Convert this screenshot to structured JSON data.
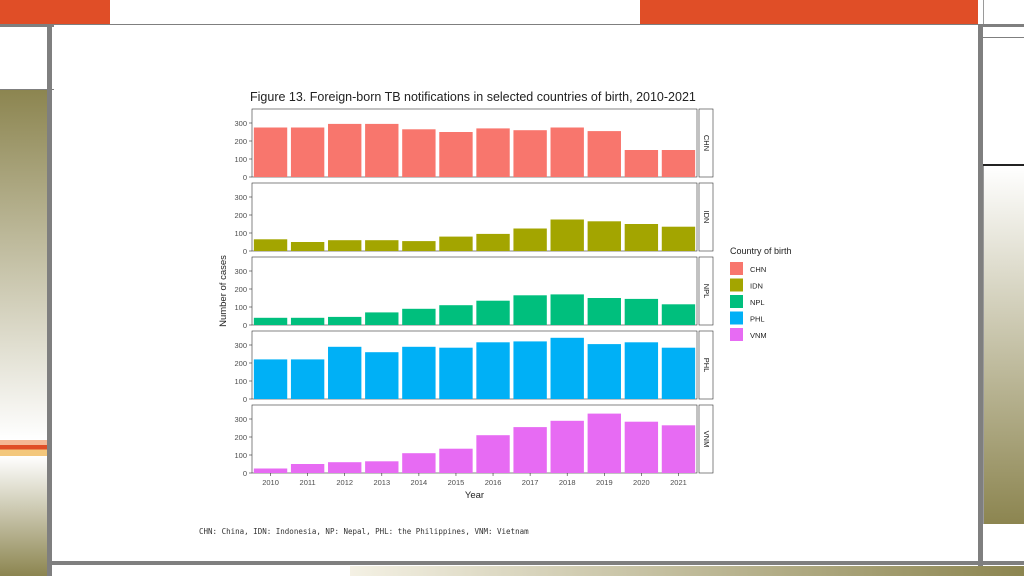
{
  "theme": {
    "accent_orange": "#e04e27",
    "frame_gray": "#7f7f7f",
    "olive_gradient_top": "#8c8550",
    "olive_gradient_bottom": "#ffffff",
    "khaki": "#c9c7aa"
  },
  "chart_data": {
    "type": "bar",
    "title": "Figure 13. Foreign-born TB notifications in selected countries of birth, 2010-2021",
    "xlabel": "Year",
    "ylabel": "Number of cases",
    "ylim": [
      0,
      350
    ],
    "yticks": [
      0,
      100,
      200,
      300
    ],
    "grid": false,
    "legend_position": "right",
    "legend_title": "Country of birth",
    "categories": [
      "2010",
      "2011",
      "2012",
      "2013",
      "2014",
      "2015",
      "2016",
      "2017",
      "2018",
      "2019",
      "2020",
      "2021"
    ],
    "series": [
      {
        "name": "CHN",
        "color": "#f8766d",
        "values": [
          275,
          275,
          295,
          295,
          265,
          250,
          270,
          260,
          275,
          255,
          150,
          150
        ]
      },
      {
        "name": "IDN",
        "color": "#a3a500",
        "values": [
          65,
          50,
          60,
          60,
          55,
          80,
          95,
          125,
          175,
          165,
          150,
          135
        ]
      },
      {
        "name": "NPL",
        "color": "#00bf7d",
        "values": [
          40,
          40,
          45,
          70,
          90,
          110,
          135,
          165,
          170,
          150,
          145,
          115
        ]
      },
      {
        "name": "PHL",
        "color": "#00b0f6",
        "values": [
          220,
          220,
          290,
          260,
          290,
          285,
          315,
          320,
          340,
          305,
          315,
          285
        ]
      },
      {
        "name": "VNM",
        "color": "#e76bf3",
        "values": [
          25,
          50,
          60,
          65,
          110,
          135,
          210,
          255,
          290,
          330,
          285,
          265
        ]
      }
    ]
  },
  "footnote": "CHN: China, IDN: Indonesia, NP: Nepal, PHL: the Philippines, VNM: Vietnam"
}
